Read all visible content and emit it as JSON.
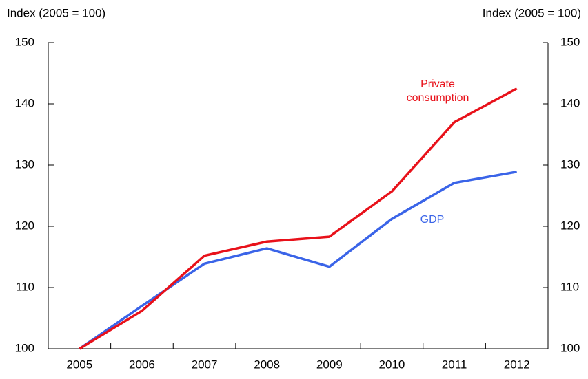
{
  "chart_data": {
    "type": "line",
    "y_label": "Index (2005 = 100)",
    "y2_label": "Index (2005 = 100)",
    "categories": [
      "2005",
      "2006",
      "2007",
      "2008",
      "2009",
      "2010",
      "2011",
      "2012"
    ],
    "series": [
      {
        "name": "GDP",
        "color": "#3a64e8",
        "values": [
          100,
          107,
          113.9,
          116.4,
          113.4,
          121.2,
          127.1,
          128.9
        ]
      },
      {
        "name": "Private consumption",
        "color": "#e8111a",
        "values": [
          100,
          106.2,
          115.2,
          117.5,
          118.3,
          125.7,
          137,
          142.5
        ]
      }
    ],
    "ylim": [
      100,
      150
    ],
    "yticks": [
      100,
      110,
      120,
      130,
      140,
      150
    ],
    "y2lim": [
      100,
      150
    ],
    "y2ticks": [
      100,
      110,
      120,
      130,
      140,
      150
    ]
  }
}
